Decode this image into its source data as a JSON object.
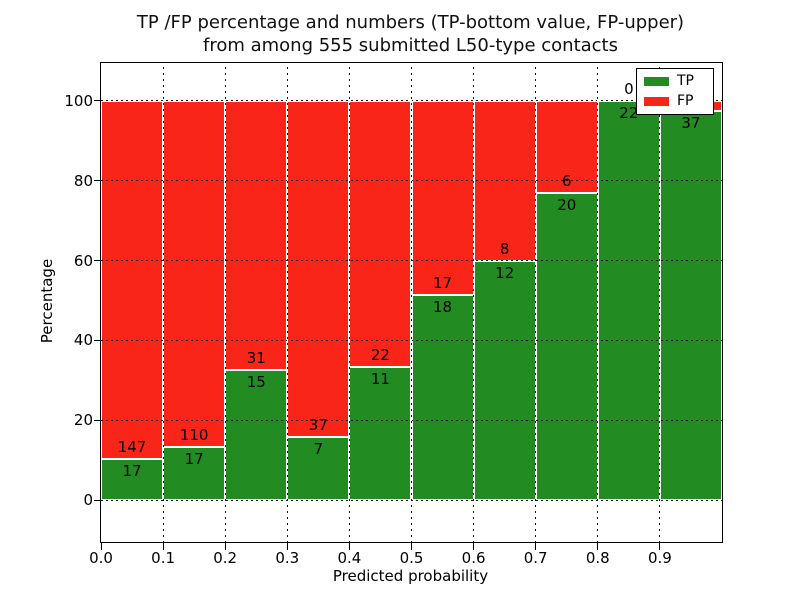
{
  "chart_data": {
    "type": "bar",
    "variant": "stacked-percentage",
    "title_line1": "TP /FP percentage and numbers (TP-bottom value, FP-upper)",
    "title_line2": "from among 555 submitted L50-type contacts",
    "xlabel": "Predicted probability",
    "ylabel": "Percentage",
    "xlim": [
      0.0,
      1.0
    ],
    "ylim": [
      -10.4,
      109.4
    ],
    "xticks": [
      "0.0",
      "0.1",
      "0.2",
      "0.3",
      "0.4",
      "0.5",
      "0.6",
      "0.7",
      "0.8",
      "0.9"
    ],
    "xtick_values": [
      0.0,
      0.1,
      0.2,
      0.3,
      0.4,
      0.5,
      0.6,
      0.7,
      0.8,
      0.9
    ],
    "yticks": [
      "0",
      "20",
      "40",
      "60",
      "80",
      "100"
    ],
    "ytick_values": [
      0,
      20,
      40,
      60,
      80,
      100
    ],
    "grid": true,
    "colors": {
      "tp": "#228b22",
      "fp": "#f92519",
      "bar_edge": "#ffffff"
    },
    "legend": {
      "position": "upper right",
      "items": [
        {
          "label": "TP",
          "color": "#228b22"
        },
        {
          "label": "FP",
          "color": "#f92519"
        }
      ]
    },
    "bars": [
      {
        "range": [
          0.0,
          0.1
        ],
        "tp": 17,
        "fp": 147,
        "tp_label": "17",
        "fp_label": "147"
      },
      {
        "range": [
          0.1,
          0.2
        ],
        "tp": 17,
        "fp": 110,
        "tp_label": "17",
        "fp_label": "110"
      },
      {
        "range": [
          0.2,
          0.3
        ],
        "tp": 15,
        "fp": 31,
        "tp_label": "15",
        "fp_label": "31"
      },
      {
        "range": [
          0.3,
          0.4
        ],
        "tp": 7,
        "fp": 37,
        "tp_label": "7",
        "fp_label": "37"
      },
      {
        "range": [
          0.4,
          0.5
        ],
        "tp": 11,
        "fp": 22,
        "tp_label": "11",
        "fp_label": "22"
      },
      {
        "range": [
          0.5,
          0.6
        ],
        "tp": 18,
        "fp": 17,
        "tp_label": "18",
        "fp_label": "17"
      },
      {
        "range": [
          0.6,
          0.7
        ],
        "tp": 12,
        "fp": 8,
        "tp_label": "12",
        "fp_label": "8"
      },
      {
        "range": [
          0.7,
          0.8
        ],
        "tp": 20,
        "fp": 6,
        "tp_label": "20",
        "fp_label": "6"
      },
      {
        "range": [
          0.8,
          0.9
        ],
        "tp": 22,
        "fp": 0,
        "tp_label": "22",
        "fp_label": "0"
      },
      {
        "range": [
          0.9,
          1.0
        ],
        "tp": 37,
        "fp": 1,
        "tp_label": "37",
        "fp_label": ""
      }
    ]
  }
}
